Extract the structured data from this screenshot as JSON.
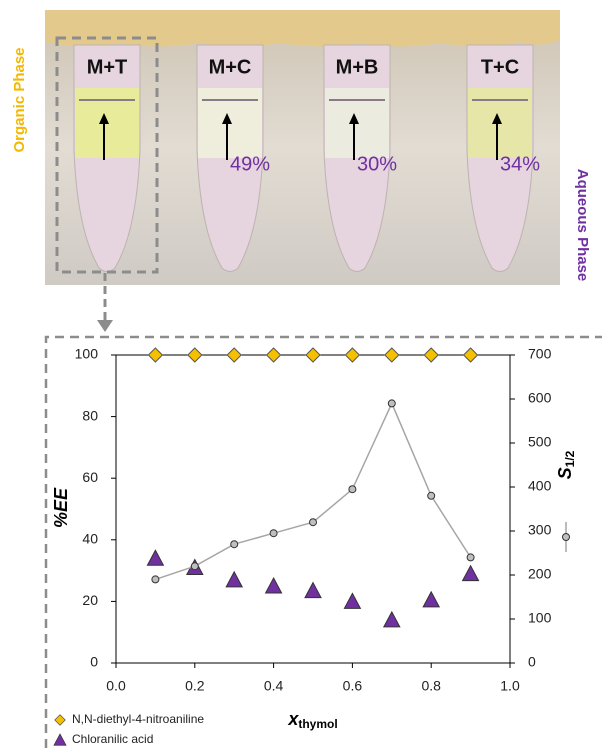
{
  "photo": {
    "tube_labels": [
      "M+T",
      "M+C",
      "M+B",
      "T+C"
    ],
    "percents": [
      "49%",
      "30%",
      "34%"
    ],
    "left_label": "Organic Phase",
    "right_label": "Aqueous Phase"
  },
  "chart_data": {
    "type": "scatter",
    "x": [
      0.1,
      0.2,
      0.3,
      0.4,
      0.5,
      0.6,
      0.7,
      0.8,
      0.9
    ],
    "x_label": "x",
    "x_label_sub": "thymol",
    "y_label": "%EE",
    "y2_label": "S",
    "y2_label_sub": "1/2",
    "xlim": [
      0,
      1
    ],
    "xticks": [
      {
        "value": 0,
        "label": "0.0"
      },
      0.2,
      0.4,
      0.6,
      0.8,
      {
        "value": 1,
        "label": "1.0"
      }
    ],
    "ylim": [
      0,
      100
    ],
    "yticks": [
      0,
      20,
      40,
      60,
      80,
      100
    ],
    "y2lim": [
      0,
      700
    ],
    "y2ticks": [
      0,
      100,
      200,
      300,
      400,
      500,
      600,
      700
    ],
    "series": [
      {
        "name": "N,N-diethyl-4-nitroaniline",
        "color": "#f5c000",
        "marker": "diamond",
        "values": [
          100,
          100,
          100,
          100,
          100,
          100,
          100,
          100,
          100
        ]
      },
      {
        "name": "Chloranilic acid",
        "color": "#7030a0",
        "marker": "triangle",
        "values": [
          34,
          31,
          27,
          25,
          23.5,
          20,
          14,
          20.5,
          29
        ]
      },
      {
        "color": "#bfbfbf",
        "marker": "circle",
        "axis": "y2",
        "values": [
          190,
          220,
          270,
          295,
          320,
          395,
          590,
          380,
          240
        ]
      }
    ]
  }
}
